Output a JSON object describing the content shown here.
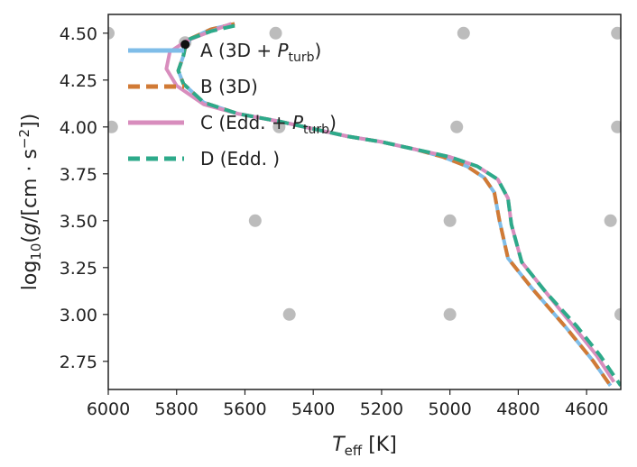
{
  "chart_data": {
    "type": "line",
    "xlabel": "T_eff [K]",
    "ylabel": "log10(g/[cm·s^-2])",
    "xlim": [
      6000,
      4500
    ],
    "ylim": [
      4.6,
      2.6
    ],
    "xticks": [
      6000,
      5800,
      5600,
      5400,
      5200,
      5000,
      4800,
      4600
    ],
    "xtick_labels": [
      "6000",
      "5800",
      "5600",
      "5400",
      "5200",
      "5000",
      "4800",
      "4600"
    ],
    "yticks": [
      2.75,
      3.0,
      3.25,
      3.5,
      3.75,
      4.0,
      4.25,
      4.5
    ],
    "ytick_labels": [
      "2.75",
      "3.00",
      "3.25",
      "3.50",
      "3.75",
      "4.00",
      "4.25",
      "4.50"
    ],
    "legend_position": "top-left",
    "series": [
      {
        "name": "A (3D + P_turb)",
        "label_main": "A (3D + ",
        "label_sub": "turb",
        "label_end": ")",
        "color": "#7fbde8",
        "dash": "solid",
        "points": [
          [
            5630,
            4.55
          ],
          [
            5700,
            4.52
          ],
          [
            5760,
            4.47
          ],
          [
            5775,
            4.42
          ],
          [
            5780,
            4.38
          ],
          [
            5795,
            4.3
          ],
          [
            5780,
            4.23
          ],
          [
            5720,
            4.13
          ],
          [
            5620,
            4.07
          ],
          [
            5500,
            4.03
          ],
          [
            5400,
            3.99
          ],
          [
            5300,
            3.95
          ],
          [
            5200,
            3.92
          ],
          [
            5100,
            3.88
          ],
          [
            5020,
            3.84
          ],
          [
            4950,
            3.79
          ],
          [
            4900,
            3.73
          ],
          [
            4870,
            3.65
          ],
          [
            4855,
            3.5
          ],
          [
            4830,
            3.3
          ],
          [
            4760,
            3.14
          ],
          [
            4660,
            2.93
          ],
          [
            4580,
            2.75
          ],
          [
            4530,
            2.62
          ]
        ]
      },
      {
        "name": "B (3D)",
        "label_main": "B (3D)",
        "label_sub": "",
        "label_end": "",
        "color": "#d17a35",
        "dash": "dashed",
        "points": [
          [
            5630,
            4.55
          ],
          [
            5700,
            4.52
          ],
          [
            5760,
            4.47
          ],
          [
            5775,
            4.42
          ],
          [
            5780,
            4.38
          ],
          [
            5795,
            4.3
          ],
          [
            5780,
            4.23
          ],
          [
            5720,
            4.13
          ],
          [
            5620,
            4.07
          ],
          [
            5500,
            4.03
          ],
          [
            5400,
            3.99
          ],
          [
            5300,
            3.95
          ],
          [
            5200,
            3.92
          ],
          [
            5100,
            3.88
          ],
          [
            5020,
            3.84
          ],
          [
            4950,
            3.79
          ],
          [
            4900,
            3.73
          ],
          [
            4870,
            3.65
          ],
          [
            4855,
            3.5
          ],
          [
            4830,
            3.3
          ],
          [
            4760,
            3.14
          ],
          [
            4660,
            2.93
          ],
          [
            4580,
            2.75
          ],
          [
            4530,
            2.62
          ]
        ]
      },
      {
        "name": "C (Edd. + P_turb)",
        "label_main": "C (Edd. + ",
        "label_sub": "turb",
        "label_end": ")",
        "color": "#d88dbd",
        "dash": "solid",
        "points": [
          [
            5640,
            4.55
          ],
          [
            5700,
            4.51
          ],
          [
            5770,
            4.46
          ],
          [
            5820,
            4.4
          ],
          [
            5830,
            4.31
          ],
          [
            5800,
            4.22
          ],
          [
            5720,
            4.12
          ],
          [
            5620,
            4.07
          ],
          [
            5500,
            4.03
          ],
          [
            5400,
            3.99
          ],
          [
            5300,
            3.95
          ],
          [
            5200,
            3.92
          ],
          [
            5100,
            3.88
          ],
          [
            5000,
            3.84
          ],
          [
            4920,
            3.79
          ],
          [
            4860,
            3.72
          ],
          [
            4830,
            3.62
          ],
          [
            4820,
            3.48
          ],
          [
            4790,
            3.28
          ],
          [
            4720,
            3.12
          ],
          [
            4640,
            2.94
          ],
          [
            4570,
            2.78
          ],
          [
            4520,
            2.64
          ]
        ]
      },
      {
        "name": "D (Edd.)",
        "label_main": "D (Edd. )",
        "label_sub": "",
        "label_end": "",
        "color": "#2daa8a",
        "dash": "dashed",
        "points": [
          [
            5630,
            4.54
          ],
          [
            5700,
            4.51
          ],
          [
            5760,
            4.47
          ],
          [
            5775,
            4.43
          ],
          [
            5780,
            4.38
          ],
          [
            5795,
            4.3
          ],
          [
            5780,
            4.23
          ],
          [
            5720,
            4.13
          ],
          [
            5620,
            4.07
          ],
          [
            5500,
            4.03
          ],
          [
            5400,
            3.99
          ],
          [
            5300,
            3.95
          ],
          [
            5200,
            3.92
          ],
          [
            5100,
            3.88
          ],
          [
            5000,
            3.84
          ],
          [
            4920,
            3.79
          ],
          [
            4860,
            3.72
          ],
          [
            4830,
            3.62
          ],
          [
            4820,
            3.48
          ],
          [
            4790,
            3.28
          ],
          [
            4720,
            3.12
          ],
          [
            4630,
            2.94
          ],
          [
            4560,
            2.78
          ],
          [
            4500,
            2.62
          ]
        ]
      }
    ],
    "grid_points": [
      [
        6000,
        4.5
      ],
      [
        5990,
        4.0
      ],
      [
        5470,
        3.0
      ],
      [
        5570,
        3.5
      ],
      [
        5510,
        4.5
      ],
      [
        5500,
        4.0
      ],
      [
        5000,
        3.0
      ],
      [
        5000,
        3.5
      ],
      [
        4980,
        4.0
      ],
      [
        4960,
        4.5
      ],
      [
        4500,
        3.0
      ],
      [
        4530,
        3.5
      ],
      [
        4510,
        4.0
      ],
      [
        4510,
        4.5
      ],
      [
        5775,
        4.45
      ]
    ],
    "grid_point_color": "#b0b0b0",
    "marker": {
      "x": 5775,
      "y": 4.44,
      "color": "#111111"
    }
  }
}
